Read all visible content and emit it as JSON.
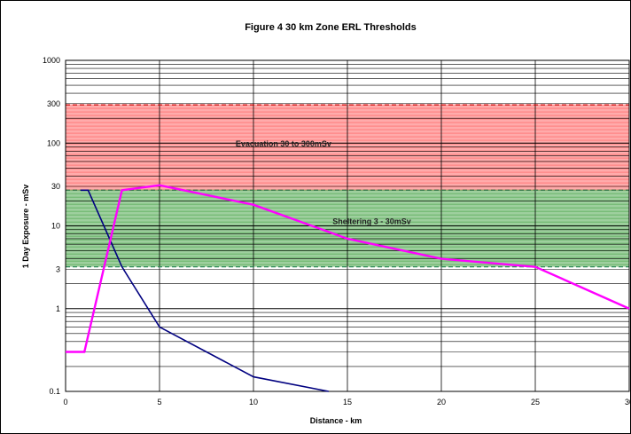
{
  "chart_data": {
    "type": "line",
    "title": "Figure 4    30 km Zone ERL Thresholds",
    "xlabel": "Distance - km",
    "ylabel": "1 Day Exposure - mSv",
    "xlim": [
      0,
      30
    ],
    "ylim": [
      0.1,
      1000
    ],
    "yscale": "log",
    "x_ticks": [
      0,
      5,
      10,
      15,
      20,
      25,
      30
    ],
    "x_tick_labels": [
      "0",
      "5",
      "10",
      "15",
      "20",
      "25",
      "30"
    ],
    "y_ticks": [
      0.1,
      1,
      3,
      10,
      30,
      100,
      300,
      1000
    ],
    "y_tick_labels": [
      "0.1",
      "1",
      "3",
      "10",
      "30",
      "100",
      "300",
      "1000"
    ],
    "grid": true,
    "bands": [
      {
        "label": "Evacuation 30 to 300mSv",
        "y_min": 27,
        "y_max": 290,
        "color": "#ff6666"
      },
      {
        "label": "Sheltering 3 - 30mSv",
        "y_min": 3.2,
        "y_max": 27,
        "color": "#4fa84f"
      }
    ],
    "series": [
      {
        "color": "#000080",
        "x": [
          0.8,
          1.2,
          3,
          5,
          10,
          14
        ],
        "y": [
          27,
          27,
          3.2,
          0.6,
          0.15,
          0.1
        ]
      },
      {
        "color": "#ff00ff",
        "x": [
          0,
          1,
          3,
          5,
          10,
          15,
          20,
          25,
          30
        ],
        "y": [
          0.3,
          0.3,
          27,
          31,
          18,
          7,
          4,
          3.2,
          1
        ]
      }
    ]
  }
}
